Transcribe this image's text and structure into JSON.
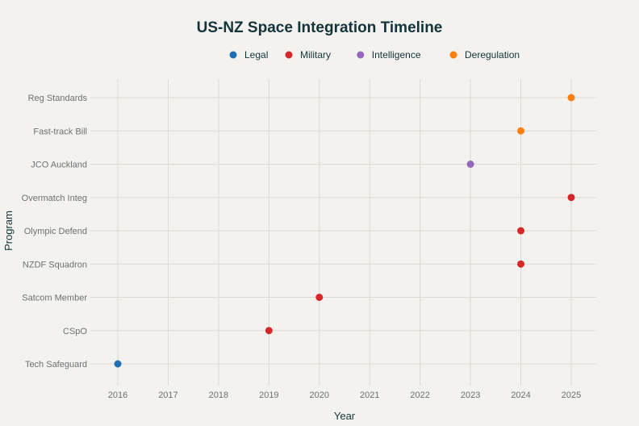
{
  "chart_data": {
    "type": "scatter",
    "title": "US-NZ Space Integration Timeline",
    "xlabel": "Year",
    "ylabel": "Program",
    "xlim": [
      2015.6,
      2025.5
    ],
    "x_ticks": [
      2016,
      2017,
      2018,
      2019,
      2020,
      2021,
      2022,
      2023,
      2024,
      2025
    ],
    "categories": [
      "Tech Safeguard",
      "CSpO",
      "Satcom Member",
      "NZDF Squadron",
      "Olympic Defend",
      "Overmatch Integ",
      "JCO Auckland",
      "Fast-track Bill",
      "Reg Standards"
    ],
    "grid": true,
    "legend_position": "top-center",
    "series": [
      {
        "name": "Legal",
        "color": "#1f6fb4",
        "points": [
          {
            "program": "Tech Safeguard",
            "year": 2016
          }
        ]
      },
      {
        "name": "Military",
        "color": "#d62728",
        "points": [
          {
            "program": "CSpO",
            "year": 2019
          },
          {
            "program": "Satcom Member",
            "year": 2020
          },
          {
            "program": "NZDF Squadron",
            "year": 2024
          },
          {
            "program": "Olympic Defend",
            "year": 2024
          },
          {
            "program": "Overmatch Integ",
            "year": 2025
          }
        ]
      },
      {
        "name": "Intelligence",
        "color": "#9467bd",
        "points": [
          {
            "program": "JCO Auckland",
            "year": 2023
          }
        ]
      },
      {
        "name": "Deregulation",
        "color": "#ff7f0e",
        "points": [
          {
            "program": "Fast-track Bill",
            "year": 2024
          },
          {
            "program": "Reg Standards",
            "year": 2025
          }
        ]
      }
    ]
  }
}
